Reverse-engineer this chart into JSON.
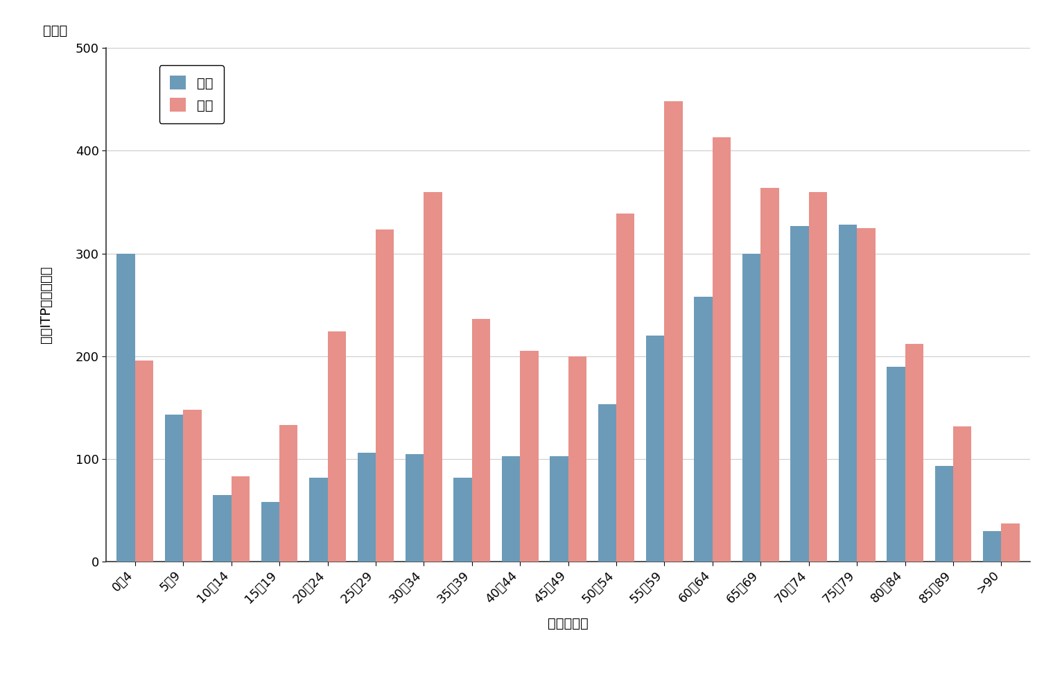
{
  "categories": [
    "0〜4",
    "5〜9",
    "10〜14",
    "15〜19",
    "20〜24",
    "25〜29",
    "30〜34",
    "35〜39",
    "40〜44",
    "45〜49",
    "50〜54",
    "55〜59",
    "60〜64",
    "65〜69",
    "70〜74",
    "75〜79",
    "80〜84",
    "85〜89",
    ">90"
  ],
  "male_values": [
    300,
    143,
    65,
    58,
    82,
    106,
    105,
    82,
    103,
    103,
    153,
    220,
    258,
    300,
    327,
    328,
    190,
    93,
    30
  ],
  "female_values": [
    196,
    148,
    83,
    133,
    224,
    323,
    360,
    236,
    205,
    200,
    339,
    448,
    413,
    364,
    360,
    325,
    212,
    132,
    37
  ],
  "male_color": "#6b9bb8",
  "female_color": "#e8908a",
  "male_label": "男性",
  "female_label": "女性",
  "ylabel_chars": [
    "新",
    "規",
    "I",
    "T",
    "P",
    "発",
    "症",
    "患",
    "者",
    "数"
  ],
  "ylabel_unit": "（人）",
  "xlabel": "年齢（歳）",
  "ylim": [
    0,
    500
  ],
  "yticks": [
    0,
    100,
    200,
    300,
    400,
    500
  ],
  "background_color": "#ffffff",
  "bar_width": 0.38,
  "axis_fontsize": 14,
  "tick_fontsize": 13,
  "legend_fontsize": 14
}
